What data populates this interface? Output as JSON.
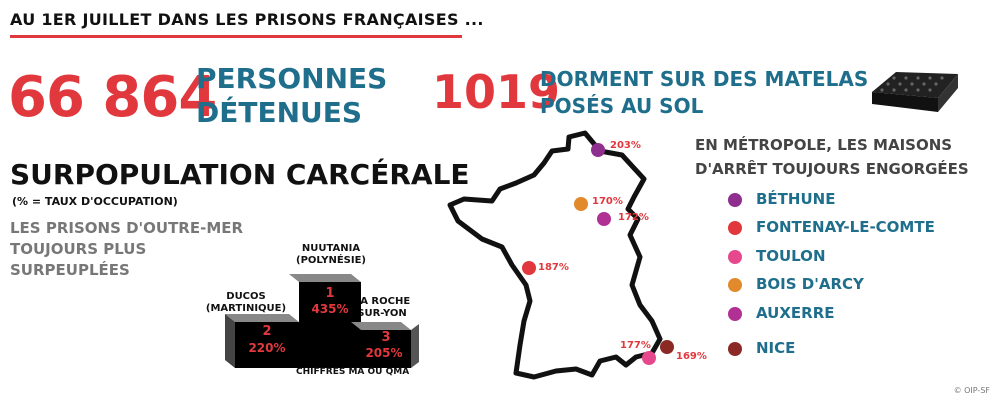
{
  "header": {
    "title": "AU 1ER JUILLET DANS LES PRISONS FRANÇAISES ..."
  },
  "detenus": {
    "number": "66 864",
    "label_line1": "PERSONNES",
    "label_line2": "DÉTENUES"
  },
  "matelas": {
    "number": "1019",
    "label_line1": "DORMENT SUR DES MATELAS",
    "label_line2": "POSÉS AU SOL",
    "icon": "mattress-icon"
  },
  "surpopulation": {
    "title": "SURPOPULATION CARCÉRALE",
    "subtitle": "(% = TAUX D'OCCUPATION)",
    "outremer_line1": "LES PRISONS D'OUTRE-MER",
    "outremer_line2": "TOUJOURS PLUS",
    "outremer_line3": "SURPEUPLÉES"
  },
  "podium": {
    "first": {
      "name_line1": "NUUTANIA",
      "name_line2": "(POLYNÉSIE)",
      "rank": "1",
      "pct": "435%",
      "value": 435
    },
    "second": {
      "name_line1": "DUCOS",
      "name_line2": "(MARTINIQUE)",
      "rank": "2",
      "pct": "220%",
      "value": 220
    },
    "third": {
      "name_line1": "LA ROCHE",
      "name_line2": "SUR-YON",
      "rank": "3",
      "pct": "205%",
      "value": 205
    },
    "footnote": "CHIFFRES MA OU QMA"
  },
  "metropole": {
    "title_line1": "EN MÉTROPOLE, LES MAISONS",
    "title_line2": "D'ARRÊT TOUJOURS ENGORGÉES",
    "legend": [
      {
        "name": "BÉTHUNE",
        "color": "#8e2e8f"
      },
      {
        "name": "FONTENAY-LE-COMTE",
        "color": "#e1383d"
      },
      {
        "name": "TOULON",
        "color": "#e6488e"
      },
      {
        "name": "BOIS D'ARCY",
        "color": "#e28a2b"
      },
      {
        "name": "AUXERRE",
        "color": "#b03094"
      },
      {
        "name": "NICE",
        "color": "#8b2a25"
      }
    ],
    "map_markers": [
      {
        "pct": "203%",
        "color": "#8e2e8f"
      },
      {
        "pct": "170%",
        "color": "#e28a2b"
      },
      {
        "pct": "172%",
        "color": "#b03094"
      },
      {
        "pct": "187%",
        "color": "#e1383d"
      },
      {
        "pct": "177%",
        "color": "#e6488e"
      },
      {
        "pct": "169%",
        "color": "#8b2a25"
      }
    ]
  },
  "credit": "© OIP-SF"
}
